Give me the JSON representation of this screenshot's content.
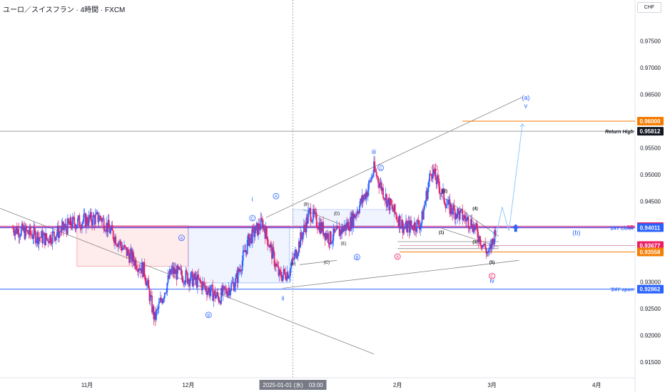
{
  "title": "ユーロ／スイスフラン · 4時間 · FXCM",
  "currency_button": "CHF",
  "chart_data": {
    "type": "candlestick",
    "title": "ユーロ／スイスフラン · 4時間 · FXCM",
    "symbol": "EURCHF",
    "timeframe": "4時間",
    "source": "FXCM",
    "ylim": [
      0.9125,
      0.98
    ],
    "y_ticks": [
      "0.97500",
      "0.97000",
      "0.96500",
      "0.95500",
      "0.95000",
      "0.94500",
      "0.93000",
      "0.92500",
      "0.92000",
      "0.91500"
    ],
    "x_ticks": [
      "11月",
      "12月",
      "2025-01-01 (水)　03:00",
      "2月",
      "3月",
      "4月"
    ],
    "crosshair_date": "2025-01-01 (水)　03:00",
    "approx_close_path": [
      [
        "2024-10-10",
        0.94
      ],
      [
        "2024-10-20",
        0.938
      ],
      [
        "2024-10-28",
        0.941
      ],
      [
        "2024-11-05",
        0.942
      ],
      [
        "2024-11-12",
        0.936
      ],
      [
        "2024-11-18",
        0.932
      ],
      [
        "2024-11-21",
        0.923
      ],
      [
        "2024-11-26",
        0.932
      ],
      [
        "2024-12-04",
        0.93
      ],
      [
        "2024-12-10",
        0.927
      ],
      [
        "2024-12-15",
        0.93
      ],
      [
        "2024-12-19",
        0.938
      ],
      [
        "2024-12-23",
        0.941
      ],
      [
        "2024-12-28",
        0.931
      ],
      [
        "2024-12-31",
        0.932
      ],
      [
        "2025-01-06",
        0.943
      ],
      [
        "2025-01-12",
        0.938
      ],
      [
        "2025-01-18",
        0.941
      ],
      [
        "2025-01-23",
        0.947
      ],
      [
        "2025-01-25",
        0.951
      ],
      [
        "2025-01-29",
        0.945
      ],
      [
        "2025-02-03",
        0.94
      ],
      [
        "2025-02-08",
        0.941
      ],
      [
        "2025-02-11",
        0.951
      ],
      [
        "2025-02-16",
        0.944
      ],
      [
        "2025-02-23",
        0.941
      ],
      [
        "2025-02-28",
        0.935
      ],
      [
        "2025-03-02",
        0.9395
      ]
    ],
    "price_labels": [
      {
        "label": "",
        "value": "0.96000",
        "color": "#f57c00"
      },
      {
        "label": "Return High",
        "value": "0.95812",
        "color": "#131722"
      },
      {
        "label": "SR",
        "value": "0.94030",
        "color": "#e91e63"
      },
      {
        "label": "'24Y close",
        "value": "0.94011",
        "color": "#2962ff"
      },
      {
        "label": "",
        "value": "0.93677",
        "color": "#e91e63"
      },
      {
        "label": "",
        "value": "0.93558",
        "color": "#f57c00"
      },
      {
        "label": "'24Y open",
        "value": "0.92862",
        "color": "#2962ff"
      }
    ],
    "wave_labels": [
      "i",
      "ii",
      "iii",
      "iv",
      "v",
      "(a)",
      "(b)",
      "A",
      "B",
      "C",
      "(A)",
      "(B)",
      "(C)",
      "(D)",
      "(E)",
      "(1)",
      "(2)",
      "(3)",
      "(4)",
      "(5)"
    ]
  }
}
